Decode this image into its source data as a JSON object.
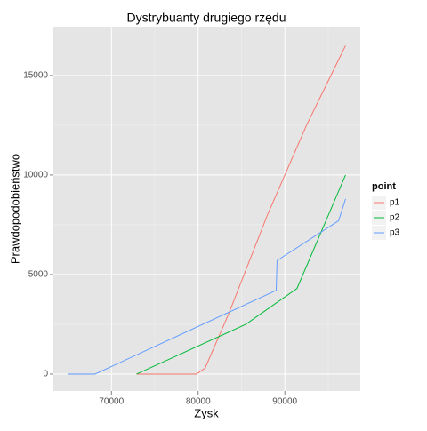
{
  "chart_data": {
    "type": "line",
    "title": "Dystrybuanty drugiego rzędu",
    "x_label": "Zysk",
    "y_label": "Prawdopodobieństwo",
    "legend_title": "point",
    "legend_position": "right",
    "grid": true,
    "xlim": [
      63300,
      98700
    ],
    "ylim": [
      -850,
      17450
    ],
    "xticks": [
      70000,
      80000,
      90000
    ],
    "yticks": [
      0,
      5000,
      10000,
      15000
    ],
    "series": [
      {
        "name": "p1",
        "color": "#F8766D",
        "x": [
          72900,
          79800,
          80800,
          83500,
          88000,
          92500,
          97000
        ],
        "values": [
          0,
          0,
          300,
          3000,
          8000,
          12500,
          16500
        ]
      },
      {
        "name": "p2",
        "color": "#00BA38",
        "x": [
          72900,
          85500,
          91400,
          97000
        ],
        "values": [
          0,
          2500,
          4300,
          10000
        ]
      },
      {
        "name": "p3",
        "color": "#619CFF",
        "x": [
          65000,
          68100,
          89000,
          89100,
          96200,
          97000
        ],
        "values": [
          0,
          0,
          4200,
          5700,
          7700,
          8800
        ]
      }
    ]
  }
}
